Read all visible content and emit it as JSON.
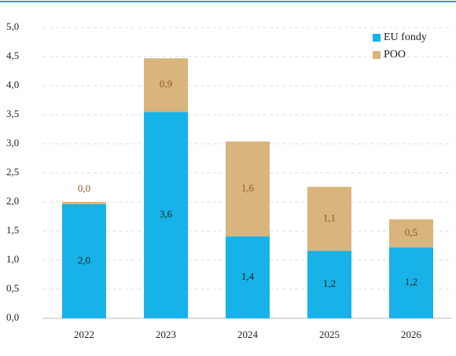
{
  "chart_data": {
    "type": "stacked_bar",
    "categories": [
      "2022",
      "2023",
      "2024",
      "2025",
      "2026"
    ],
    "series": [
      {
        "name": "EU fondy",
        "color": "#17b2e8",
        "values": [
          1.96,
          3.55,
          1.41,
          1.16,
          1.22
        ],
        "value_labels": [
          "2,0",
          "3,6",
          "1,4",
          "1,2",
          "1,2"
        ]
      },
      {
        "name": "POO",
        "color": "#d9b47c",
        "values": [
          0.04,
          0.92,
          1.63,
          1.1,
          0.48
        ],
        "value_labels": [
          "0,0",
          "0,9",
          "1,6",
          "1,1",
          "0,5"
        ]
      }
    ],
    "ylim": [
      0,
      5
    ],
    "yticks": [
      {
        "value": 0,
        "label": "0,0"
      },
      {
        "value": 0.5,
        "label": "0,5"
      },
      {
        "value": 1,
        "label": "1,0"
      },
      {
        "value": 1.5,
        "label": "1,5"
      },
      {
        "value": 2,
        "label": "2,0"
      },
      {
        "value": 2.5,
        "label": "2,5"
      },
      {
        "value": 3,
        "label": "3,0"
      },
      {
        "value": 3.5,
        "label": "3,5"
      },
      {
        "value": 4,
        "label": "4,0"
      },
      {
        "value": 4.5,
        "label": "4,5"
      },
      {
        "value": 5,
        "label": "5,0"
      }
    ],
    "grid": true,
    "legend": "top-right"
  }
}
